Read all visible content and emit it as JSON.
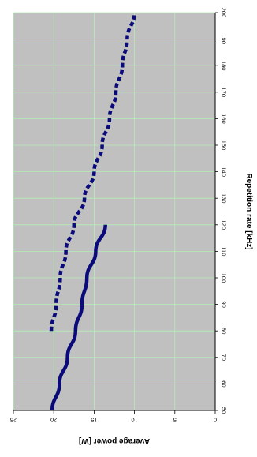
{
  "chart_data": {
    "type": "line",
    "title": "",
    "xlabel": "Repetition rate [kHz]",
    "ylabel": "Average power [W]",
    "xlim": [
      50,
      200
    ],
    "ylim": [
      0,
      25
    ],
    "x_ticks": [
      "50",
      "60",
      "70",
      "80",
      "90",
      "100",
      "110",
      "120",
      "130",
      "140",
      "150",
      "160",
      "170",
      "180",
      "190",
      "200"
    ],
    "y_ticks": [
      "0",
      "5",
      "10",
      "15",
      "20",
      "25"
    ],
    "grid": true,
    "orientation": "rotated 90 degrees clockwise (x axis runs vertically on the right, y axis horizontally at the bottom, values increasing leftward)",
    "colors": {
      "plot_background": "#c0c0c0",
      "grid": "#b6ecb6",
      "series": "#0a0a7a"
    },
    "series": [
      {
        "style": "solid",
        "x": [
          50,
          60,
          70,
          80,
          90,
          100,
          110,
          120
        ],
        "y": [
          20.2,
          19.3,
          18.3,
          17.3,
          16.5,
          15.9,
          14.8,
          13.6
        ]
      },
      {
        "style": "dashed",
        "x": [
          80,
          90,
          100,
          110,
          120,
          130,
          140,
          150,
          160,
          170,
          180,
          190,
          200
        ],
        "y": [
          20.3,
          19.7,
          19.2,
          18.5,
          17.5,
          16.2,
          15.0,
          14.0,
          13.1,
          12.3,
          11.5,
          10.9,
          10.0
        ]
      }
    ]
  }
}
